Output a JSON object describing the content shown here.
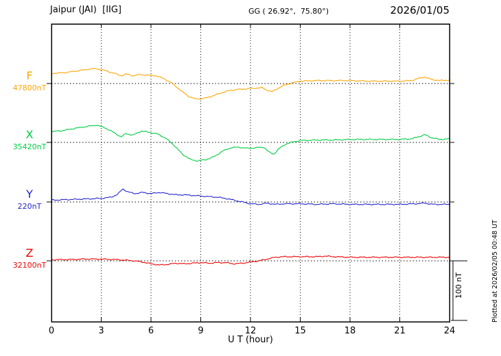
{
  "header": {
    "station": "Jaipur (JAI)  [IIG]",
    "coords": "GG ( 26.92°,  75.80°)",
    "date": "2026/01/05"
  },
  "footer_note": "Plotted at 2026/02/05 00:48 UT",
  "chart_data": {
    "type": "line",
    "xlabel": "U T (hour)",
    "xlim": [
      0,
      24
    ],
    "x_ticks": [
      0,
      3,
      6,
      9,
      12,
      15,
      18,
      21,
      24
    ],
    "grid": "vertical-dotted",
    "y_unit": "nT offset from component baseline",
    "scale_bar": {
      "label": "100 nT",
      "nT": 100
    },
    "series": [
      {
        "name": "F",
        "baseline_label": "47800nT",
        "color": "#FFA500",
        "points": [
          [
            0,
            17
          ],
          [
            0.7,
            18
          ],
          [
            1.5,
            21
          ],
          [
            2.2,
            24
          ],
          [
            2.7,
            25
          ],
          [
            3.2,
            22
          ],
          [
            3.8,
            17
          ],
          [
            4.2,
            13
          ],
          [
            4.5,
            16
          ],
          [
            4.9,
            13
          ],
          [
            5.3,
            15
          ],
          [
            5.8,
            14
          ],
          [
            6.3,
            13
          ],
          [
            6.8,
            8
          ],
          [
            7.3,
            0
          ],
          [
            7.8,
            -12
          ],
          [
            8.3,
            -22
          ],
          [
            8.7,
            -26
          ],
          [
            9.2,
            -25
          ],
          [
            9.7,
            -21
          ],
          [
            10.2,
            -16
          ],
          [
            10.7,
            -12
          ],
          [
            11.2,
            -10
          ],
          [
            11.7,
            -9
          ],
          [
            12.2,
            -8
          ],
          [
            12.7,
            -7
          ],
          [
            13.0,
            -11
          ],
          [
            13.3,
            -14
          ],
          [
            13.6,
            -9
          ],
          [
            14.0,
            -3
          ],
          [
            14.5,
            1
          ],
          [
            15,
            4
          ],
          [
            16,
            5
          ],
          [
            17,
            5
          ],
          [
            18,
            5
          ],
          [
            19,
            4
          ],
          [
            20,
            4
          ],
          [
            21,
            4
          ],
          [
            21.7,
            5
          ],
          [
            22.2,
            9
          ],
          [
            22.5,
            11
          ],
          [
            22.9,
            7
          ],
          [
            23.4,
            5
          ],
          [
            24,
            6
          ]
        ]
      },
      {
        "name": "X",
        "baseline_label": "35420nT",
        "color": "#00CC44",
        "points": [
          [
            0,
            18
          ],
          [
            0.7,
            20
          ],
          [
            1.5,
            24
          ],
          [
            2.2,
            27
          ],
          [
            2.7,
            29
          ],
          [
            3.2,
            25
          ],
          [
            3.8,
            16
          ],
          [
            4.2,
            9
          ],
          [
            4.5,
            15
          ],
          [
            4.9,
            12
          ],
          [
            5.4,
            19
          ],
          [
            5.9,
            17
          ],
          [
            6.4,
            14
          ],
          [
            6.9,
            7
          ],
          [
            7.4,
            -5
          ],
          [
            7.9,
            -20
          ],
          [
            8.4,
            -29
          ],
          [
            8.8,
            -31
          ],
          [
            9.3,
            -29
          ],
          [
            9.8,
            -24
          ],
          [
            10.3,
            -15
          ],
          [
            10.8,
            -9
          ],
          [
            11.3,
            -8
          ],
          [
            11.8,
            -10
          ],
          [
            12.3,
            -9
          ],
          [
            12.8,
            -8
          ],
          [
            13.1,
            -16
          ],
          [
            13.4,
            -20
          ],
          [
            13.7,
            -11
          ],
          [
            14.1,
            -3
          ],
          [
            14.6,
            1
          ],
          [
            15,
            3
          ],
          [
            16,
            4
          ],
          [
            17,
            4
          ],
          [
            18,
            5
          ],
          [
            19,
            5
          ],
          [
            20,
            5
          ],
          [
            21,
            5
          ],
          [
            21.7,
            6
          ],
          [
            22.2,
            10
          ],
          [
            22.5,
            13
          ],
          [
            22.9,
            8
          ],
          [
            23.4,
            5
          ],
          [
            24,
            6
          ]
        ]
      },
      {
        "name": "Y",
        "baseline_label": "220nT",
        "color": "#2222CC",
        "points": [
          [
            0,
            3
          ],
          [
            1,
            4
          ],
          [
            2,
            5
          ],
          [
            3,
            6
          ],
          [
            3.6,
            8
          ],
          [
            4.0,
            13
          ],
          [
            4.3,
            22
          ],
          [
            4.6,
            17
          ],
          [
            5,
            14
          ],
          [
            5.5,
            16
          ],
          [
            6,
            14
          ],
          [
            6.5,
            16
          ],
          [
            7,
            14
          ],
          [
            7.5,
            12
          ],
          [
            8,
            12
          ],
          [
            8.5,
            11
          ],
          [
            9,
            10
          ],
          [
            9.5,
            9
          ],
          [
            10,
            8
          ],
          [
            10.5,
            6
          ],
          [
            11,
            3
          ],
          [
            11.5,
            0
          ],
          [
            12,
            -3
          ],
          [
            12.5,
            -4
          ],
          [
            13,
            -2
          ],
          [
            13.5,
            -4
          ],
          [
            14,
            -3
          ],
          [
            15,
            -3
          ],
          [
            16,
            -4
          ],
          [
            17,
            -3
          ],
          [
            18,
            -4
          ],
          [
            19,
            -4
          ],
          [
            20,
            -4
          ],
          [
            21,
            -4
          ],
          [
            22,
            -3
          ],
          [
            22.5,
            -2
          ],
          [
            23,
            -4
          ],
          [
            24,
            -4
          ]
        ]
      },
      {
        "name": "Z",
        "baseline_label": "32100nT",
        "color": "#EE0000",
        "points": [
          [
            0,
            2
          ],
          [
            1,
            2
          ],
          [
            2,
            3
          ],
          [
            3,
            3
          ],
          [
            4,
            2
          ],
          [
            5,
            0
          ],
          [
            5.5,
            -2
          ],
          [
            6,
            -5
          ],
          [
            6.5,
            -7
          ],
          [
            7,
            -6
          ],
          [
            7.5,
            -4
          ],
          [
            8,
            -5
          ],
          [
            8.5,
            -4
          ],
          [
            9,
            -3
          ],
          [
            9.5,
            -4
          ],
          [
            10,
            -3
          ],
          [
            10.5,
            -3
          ],
          [
            11,
            -5
          ],
          [
            11.5,
            -4
          ],
          [
            12,
            -2
          ],
          [
            12.5,
            0
          ],
          [
            13,
            3
          ],
          [
            13.5,
            6
          ],
          [
            14,
            7
          ],
          [
            15,
            7
          ],
          [
            16,
            7
          ],
          [
            16.5,
            8
          ],
          [
            17,
            7
          ],
          [
            18,
            6
          ],
          [
            19,
            6
          ],
          [
            20,
            6
          ],
          [
            21,
            6
          ],
          [
            22,
            6
          ],
          [
            23,
            6
          ],
          [
            24,
            6
          ]
        ]
      }
    ]
  }
}
